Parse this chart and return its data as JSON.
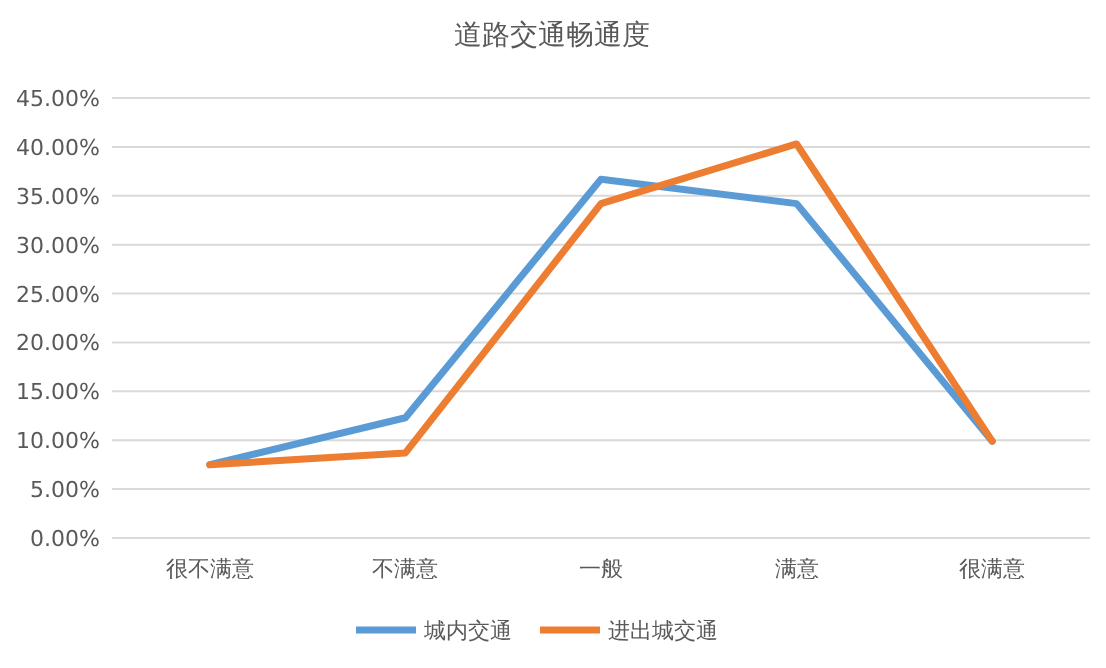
{
  "chart_data": {
    "type": "line",
    "title": "道路交通畅通度",
    "categories": [
      "很不满意",
      "不满意",
      "一般",
      "满意",
      "很满意"
    ],
    "series": [
      {
        "name": "城内交通",
        "color": "#5b9bd5",
        "values": [
          7.5,
          12.3,
          36.7,
          34.2,
          9.9
        ]
      },
      {
        "name": "进出城交通",
        "color": "#ed7d31",
        "values": [
          7.5,
          8.7,
          34.2,
          40.3,
          9.9
        ]
      }
    ],
    "ylim": [
      0,
      45
    ],
    "yticks": [
      {
        "value": 0,
        "label": "0.00%"
      },
      {
        "value": 5,
        "label": "5.00%"
      },
      {
        "value": 10,
        "label": "10.00%"
      },
      {
        "value": 15,
        "label": "15.00%"
      },
      {
        "value": 20,
        "label": "20.00%"
      },
      {
        "value": 25,
        "label": "25.00%"
      },
      {
        "value": 30,
        "label": "30.00%"
      },
      {
        "value": 35,
        "label": "35.00%"
      },
      {
        "value": 40,
        "label": "40.00%"
      },
      {
        "value": 45,
        "label": "45.00%"
      }
    ],
    "grid": "y",
    "legend": "bottom",
    "marker": "none",
    "line_style": "solid"
  }
}
